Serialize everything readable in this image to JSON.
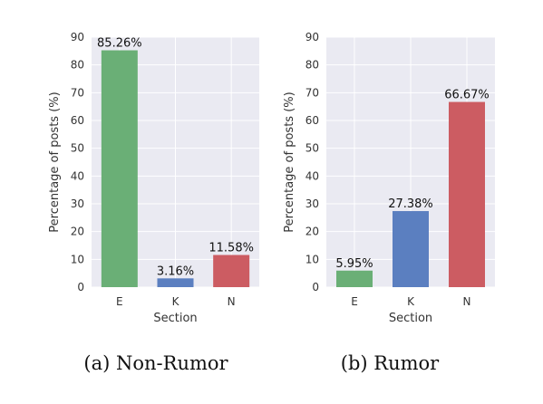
{
  "chart_data": [
    {
      "type": "bar",
      "caption": "(a)  Non-Rumor",
      "categories": [
        "E",
        "K",
        "N"
      ],
      "values": [
        85.26,
        3.16,
        11.58
      ],
      "data_labels": [
        "85.26%",
        "3.16%",
        "11.58%"
      ],
      "colors": [
        "#6aaf76",
        "#5b7fc0",
        "#cc5c62"
      ],
      "xlabel": "Section",
      "ylabel": "Percentage of posts (%)",
      "ylim": [
        0,
        90
      ],
      "yticks": [
        0,
        10,
        20,
        30,
        40,
        50,
        60,
        70,
        80,
        90
      ],
      "grid": true,
      "background": "#eaeaf2"
    },
    {
      "type": "bar",
      "caption": "(b)  Rumor",
      "categories": [
        "E",
        "K",
        "N"
      ],
      "values": [
        5.95,
        27.38,
        66.67
      ],
      "data_labels": [
        "5.95%",
        "27.38%",
        "66.67%"
      ],
      "colors": [
        "#6aaf76",
        "#5b7fc0",
        "#cc5c62"
      ],
      "xlabel": "Section",
      "ylabel": "Percentage of posts (%)",
      "ylim": [
        0,
        90
      ],
      "yticks": [
        0,
        10,
        20,
        30,
        40,
        50,
        60,
        70,
        80,
        90
      ],
      "grid": true,
      "background": "#eaeaf2"
    }
  ]
}
